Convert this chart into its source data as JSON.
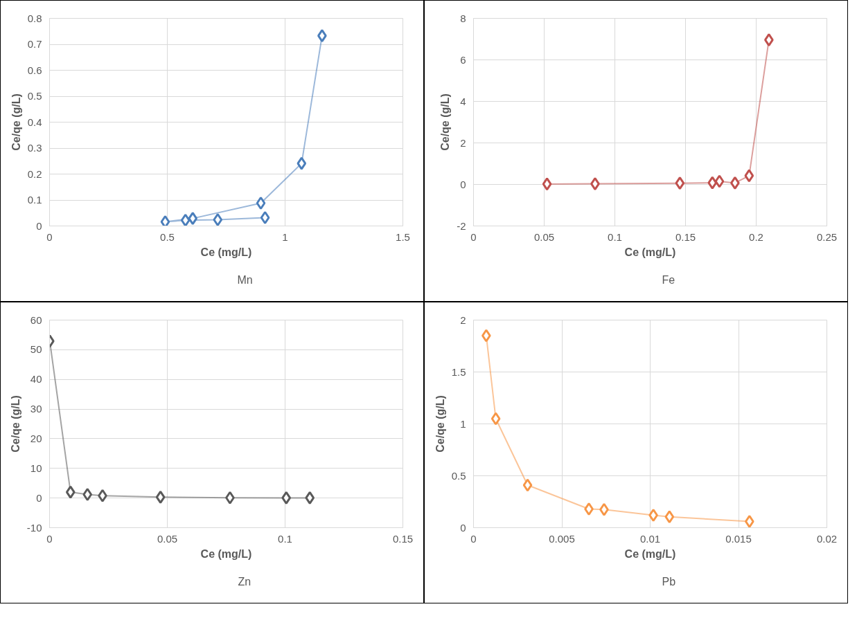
{
  "chart_data": [
    {
      "type": "line",
      "xlabel": "Ce (mg/L)",
      "ylabel": "Ce/qe (g/L)",
      "xlim": [
        0,
        1.5
      ],
      "xticks": [
        0,
        0.5,
        1,
        1.5
      ],
      "ylim": [
        0,
        0.8
      ],
      "yticks": [
        0,
        0.1,
        0.2,
        0.3,
        0.4,
        0.5,
        0.6,
        0.7,
        0.8
      ],
      "grid": true,
      "legend": "bottom",
      "marker": "diamond",
      "line_style": "solid",
      "series": [
        {
          "name": "Mn",
          "color": "#4a7ebb",
          "x": [
            1.157,
            1.07,
            0.897,
            0.608,
            0.491,
            0.577,
            0.714,
            0.915
          ],
          "values": [
            0.733,
            0.241,
            0.088,
            0.029,
            0.016,
            0.022,
            0.024,
            0.032
          ]
        }
      ]
    },
    {
      "type": "line",
      "xlabel": "Ce (mg/L)",
      "ylabel": "Ce/qe (g/L)",
      "xlim": [
        0,
        0.25
      ],
      "xticks": [
        0,
        0.05,
        0.1,
        0.15,
        0.2,
        0.25
      ],
      "ylim": [
        -2,
        8
      ],
      "yticks": [
        -2,
        0,
        2,
        4,
        6,
        8
      ],
      "grid": true,
      "legend": "bottom",
      "marker": "diamond",
      "line_style": "solid",
      "series": [
        {
          "name": "Fe",
          "color": "#c0504d",
          "x": [
            0.052,
            0.086,
            0.146,
            0.169,
            0.174,
            0.185,
            0.195,
            0.209
          ],
          "values": [
            0.02,
            0.03,
            0.06,
            0.08,
            0.15,
            0.07,
            0.42,
            6.96
          ]
        }
      ]
    },
    {
      "type": "line",
      "xlabel": "Ce (mg/L)",
      "ylabel": "Ce/qe (g/L)",
      "xlim": [
        0,
        0.15
      ],
      "xticks": [
        0,
        0.05,
        0.1,
        0.15
      ],
      "ylim": [
        -10,
        60
      ],
      "yticks": [
        -10,
        0,
        10,
        20,
        30,
        40,
        50,
        60
      ],
      "grid": true,
      "legend": "bottom",
      "marker": "diamond",
      "line_style": "solid",
      "series": [
        {
          "name": "Zn",
          "color": "#595959",
          "x": [
            0.0001,
            0.0089,
            0.0161,
            0.0225,
            0.0471,
            0.0766,
            0.1005,
            0.1105
          ],
          "values": [
            52.9,
            2.0,
            1.2,
            0.8,
            0.3,
            0.1,
            0.05,
            0.05
          ]
        }
      ]
    },
    {
      "type": "line",
      "xlabel": "Ce (mg/L)",
      "ylabel": "Ce/qe (g/L)",
      "xlim": [
        0,
        0.02
      ],
      "xticks": [
        0,
        0.005,
        0.01,
        0.015,
        0.02
      ],
      "ylim": [
        0,
        2
      ],
      "yticks": [
        0,
        0.5,
        1,
        1.5,
        2
      ],
      "grid": true,
      "legend": "bottom",
      "marker": "diamond",
      "line_style": "solid",
      "series": [
        {
          "name": "Pb",
          "color": "#f79646",
          "x": [
            0.00072,
            0.00126,
            0.00306,
            0.00653,
            0.00739,
            0.01018,
            0.01109,
            0.01562
          ],
          "values": [
            1.85,
            1.05,
            0.41,
            0.18,
            0.175,
            0.12,
            0.105,
            0.06
          ]
        }
      ]
    }
  ]
}
